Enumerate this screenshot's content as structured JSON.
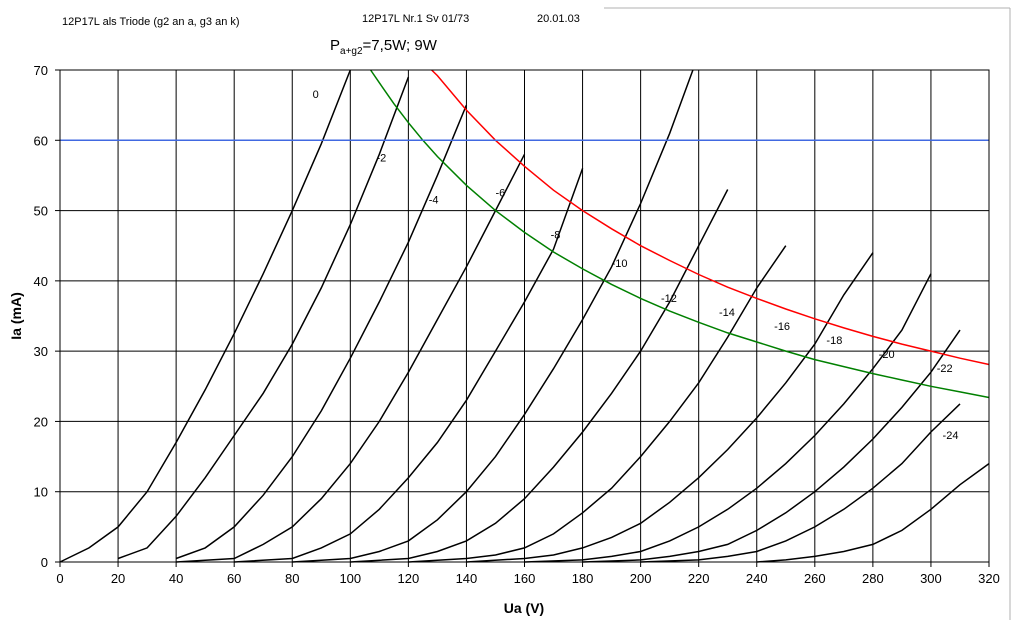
{
  "header": {
    "left": "12P17L als Triode (g2 an a, g3 an k)",
    "middle": "12P17L Nr.1 Sv 01/73",
    "date": "20.01.03"
  },
  "power_label": {
    "main": "P",
    "sub": "a+g2",
    "rest": "=7,5W; 9W"
  },
  "chart_data": {
    "type": "line",
    "xlabel": "Ua (V)",
    "ylabel": "Ia (mA)",
    "xlim": [
      0,
      320
    ],
    "ylim": [
      0,
      70
    ],
    "xticks": [
      0,
      20,
      40,
      60,
      80,
      100,
      120,
      140,
      160,
      180,
      200,
      220,
      240,
      260,
      280,
      300,
      320
    ],
    "yticks": [
      0,
      10,
      20,
      30,
      40,
      50,
      60,
      70
    ],
    "grid": true,
    "series": [
      {
        "name": "0",
        "label_at": [
          87,
          66
        ],
        "color": "#000000",
        "points": [
          [
            0,
            0
          ],
          [
            10,
            2
          ],
          [
            20,
            5
          ],
          [
            30,
            10
          ],
          [
            40,
            17
          ],
          [
            50,
            24.5
          ],
          [
            60,
            32.5
          ],
          [
            70,
            41
          ],
          [
            80,
            50
          ],
          [
            90,
            59.5
          ],
          [
            100,
            70
          ]
        ]
      },
      {
        "name": "-2",
        "label_at": [
          109,
          57
        ],
        "color": "#000000",
        "points": [
          [
            20,
            0.5
          ],
          [
            30,
            2
          ],
          [
            40,
            6.5
          ],
          [
            50,
            12
          ],
          [
            60,
            18
          ],
          [
            70,
            24
          ],
          [
            80,
            31
          ],
          [
            90,
            39
          ],
          [
            100,
            48
          ],
          [
            110,
            58
          ],
          [
            120,
            69
          ]
        ]
      },
      {
        "name": "-4",
        "label_at": [
          127,
          51
        ],
        "color": "#000000",
        "points": [
          [
            40,
            0.5
          ],
          [
            50,
            2
          ],
          [
            60,
            5
          ],
          [
            70,
            9.5
          ],
          [
            80,
            15
          ],
          [
            90,
            21.5
          ],
          [
            100,
            29
          ],
          [
            110,
            37
          ],
          [
            120,
            45.5
          ],
          [
            130,
            55
          ],
          [
            140,
            65
          ]
        ]
      },
      {
        "name": "-6",
        "label_at": [
          150,
          52
        ],
        "color": "#000000",
        "points": [
          [
            40,
            0
          ],
          [
            60,
            0.5
          ],
          [
            70,
            2.5
          ],
          [
            80,
            5
          ],
          [
            90,
            9
          ],
          [
            100,
            14
          ],
          [
            110,
            20
          ],
          [
            120,
            27
          ],
          [
            130,
            34.5
          ],
          [
            140,
            42
          ],
          [
            150,
            50
          ],
          [
            160,
            58
          ]
        ]
      },
      {
        "name": "-8",
        "label_at": [
          169,
          46
        ],
        "color": "#000000",
        "points": [
          [
            60,
            0
          ],
          [
            80,
            0.5
          ],
          [
            90,
            2
          ],
          [
            100,
            4
          ],
          [
            110,
            7.5
          ],
          [
            120,
            12
          ],
          [
            130,
            17
          ],
          [
            140,
            23
          ],
          [
            150,
            30
          ],
          [
            160,
            37
          ],
          [
            170,
            44.5
          ],
          [
            180,
            56
          ]
        ]
      },
      {
        "name": "-10",
        "label_at": [
          190,
          42
        ],
        "color": "#000000",
        "points": [
          [
            80,
            0
          ],
          [
            100,
            0.5
          ],
          [
            110,
            1.5
          ],
          [
            120,
            3
          ],
          [
            130,
            6
          ],
          [
            140,
            10
          ],
          [
            150,
            15
          ],
          [
            160,
            21
          ],
          [
            170,
            27.5
          ],
          [
            180,
            34.5
          ],
          [
            190,
            42
          ],
          [
            200,
            51
          ],
          [
            210,
            61
          ],
          [
            218,
            70
          ]
        ]
      },
      {
        "name": "-12",
        "label_at": [
          207,
          37
        ],
        "color": "#000000",
        "points": [
          [
            100,
            0
          ],
          [
            120,
            0.5
          ],
          [
            130,
            1.5
          ],
          [
            140,
            3
          ],
          [
            150,
            5.5
          ],
          [
            160,
            9
          ],
          [
            170,
            13.5
          ],
          [
            180,
            18.5
          ],
          [
            190,
            24
          ],
          [
            200,
            30
          ],
          [
            210,
            37
          ],
          [
            220,
            45
          ],
          [
            230,
            53
          ]
        ]
      },
      {
        "name": "-14",
        "label_at": [
          227,
          35
        ],
        "color": "#000000",
        "points": [
          [
            120,
            0
          ],
          [
            140,
            0.5
          ],
          [
            150,
            1
          ],
          [
            160,
            2
          ],
          [
            170,
            4
          ],
          [
            180,
            7
          ],
          [
            190,
            10.5
          ],
          [
            200,
            15
          ],
          [
            210,
            20
          ],
          [
            220,
            25.5
          ],
          [
            230,
            32
          ],
          [
            240,
            39
          ],
          [
            250,
            45
          ]
        ]
      },
      {
        "name": "-16",
        "label_at": [
          246,
          33
        ],
        "color": "#000000",
        "points": [
          [
            140,
            0
          ],
          [
            160,
            0.5
          ],
          [
            170,
            1
          ],
          [
            180,
            2
          ],
          [
            190,
            3.5
          ],
          [
            200,
            5.5
          ],
          [
            210,
            8.5
          ],
          [
            220,
            12
          ],
          [
            230,
            16
          ],
          [
            240,
            20.5
          ],
          [
            250,
            25.5
          ],
          [
            260,
            31
          ],
          [
            270,
            38
          ],
          [
            280,
            44
          ]
        ]
      },
      {
        "name": "-18",
        "label_at": [
          264,
          31
        ],
        "color": "#000000",
        "points": [
          [
            160,
            0
          ],
          [
            180,
            0.3
          ],
          [
            190,
            0.8
          ],
          [
            200,
            1.5
          ],
          [
            210,
            3
          ],
          [
            220,
            5
          ],
          [
            230,
            7.5
          ],
          [
            240,
            10.5
          ],
          [
            250,
            14
          ],
          [
            260,
            18
          ],
          [
            270,
            22.5
          ],
          [
            280,
            27.5
          ],
          [
            290,
            33
          ],
          [
            300,
            41
          ]
        ]
      },
      {
        "name": "-20",
        "label_at": [
          282,
          29
        ],
        "color": "#000000",
        "points": [
          [
            180,
            0
          ],
          [
            200,
            0.3
          ],
          [
            210,
            0.8
          ],
          [
            220,
            1.5
          ],
          [
            230,
            2.5
          ],
          [
            240,
            4.5
          ],
          [
            250,
            7
          ],
          [
            260,
            10
          ],
          [
            270,
            13.5
          ],
          [
            280,
            17.5
          ],
          [
            290,
            22
          ],
          [
            300,
            27
          ],
          [
            310,
            33
          ]
        ]
      },
      {
        "name": "-22",
        "label_at": [
          302,
          27
        ],
        "color": "#000000",
        "points": [
          [
            200,
            0
          ],
          [
            220,
            0.3
          ],
          [
            230,
            0.8
          ],
          [
            240,
            1.5
          ],
          [
            250,
            3
          ],
          [
            260,
            5
          ],
          [
            270,
            7.5
          ],
          [
            280,
            10.5
          ],
          [
            290,
            14
          ],
          [
            300,
            18.5
          ],
          [
            310,
            22.5
          ]
        ]
      },
      {
        "name": "-24",
        "label_at": [
          304,
          17.5
        ],
        "color": "#000000",
        "points": []
      },
      {
        "name": "",
        "color": "#008000",
        "points": [
          [
            107,
            70
          ],
          [
            110,
            68.2
          ],
          [
            115,
            65.2
          ],
          [
            120,
            62.5
          ],
          [
            125,
            60
          ],
          [
            130,
            57.7
          ],
          [
            140,
            53.6
          ],
          [
            150,
            50
          ],
          [
            160,
            46.9
          ],
          [
            170,
            44.1
          ],
          [
            180,
            41.7
          ],
          [
            190,
            39.5
          ],
          [
            200,
            37.5
          ],
          [
            210,
            35.7
          ],
          [
            220,
            34.1
          ],
          [
            230,
            32.6
          ],
          [
            240,
            31.3
          ],
          [
            250,
            30
          ],
          [
            260,
            28.8
          ],
          [
            270,
            27.8
          ],
          [
            280,
            26.8
          ],
          [
            290,
            25.9
          ],
          [
            300,
            25
          ],
          [
            310,
            24.2
          ],
          [
            320,
            23.4
          ]
        ]
      },
      {
        "name": "",
        "color": "#ff0000",
        "points": [
          [
            128,
            70
          ],
          [
            130,
            69.2
          ],
          [
            140,
            64.3
          ],
          [
            150,
            60
          ],
          [
            160,
            56.3
          ],
          [
            170,
            52.9
          ],
          [
            180,
            50
          ],
          [
            190,
            47.4
          ],
          [
            200,
            45
          ],
          [
            210,
            42.9
          ],
          [
            220,
            40.9
          ],
          [
            230,
            39.1
          ],
          [
            240,
            37.5
          ],
          [
            250,
            36
          ],
          [
            260,
            34.6
          ],
          [
            270,
            33.3
          ],
          [
            280,
            32.1
          ],
          [
            290,
            31
          ],
          [
            300,
            30
          ],
          [
            310,
            29
          ],
          [
            320,
            28.1
          ]
        ]
      },
      {
        "name": "",
        "color": "#4169e1",
        "points": [
          [
            0,
            60
          ],
          [
            320,
            60
          ]
        ]
      }
    ]
  }
}
